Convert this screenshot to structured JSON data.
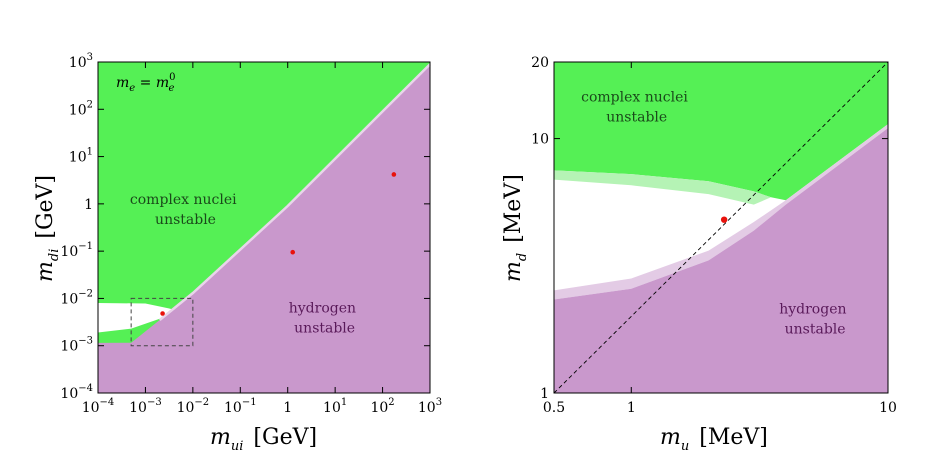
{
  "colors": {
    "green": "#55f055",
    "light_green": "#b5f3b5",
    "purple": "#c998cc",
    "light_purple": "#e3cbe5",
    "white": "#ffffff",
    "point": "#e8120c"
  },
  "chart_data": [
    {
      "type": "region",
      "xlabel_main": "m",
      "xlabel_sub": "ui",
      "xlabel_unit": "[GeV]",
      "ylabel_main": "m",
      "ylabel_sub": "di",
      "ylabel_unit": "[GeV]",
      "xscale": "log",
      "yscale": "log",
      "xlim": [
        0.0001,
        1000
      ],
      "ylim": [
        0.0001,
        1000
      ],
      "xticks": [
        {
          "v": 0.0001,
          "b": "10",
          "e": "−4"
        },
        {
          "v": 0.001,
          "b": "10",
          "e": "−3"
        },
        {
          "v": 0.01,
          "b": "10",
          "e": "−2"
        },
        {
          "v": 0.1,
          "b": "10",
          "e": "−1"
        },
        {
          "v": 1,
          "b": "1",
          "e": ""
        },
        {
          "v": 10,
          "b": "10",
          "e": "1"
        },
        {
          "v": 100,
          "b": "10",
          "e": "2"
        },
        {
          "v": 1000,
          "b": "10",
          "e": "3"
        }
      ],
      "yticks": [
        {
          "v": 0.0001,
          "b": "10",
          "e": "−4"
        },
        {
          "v": 0.001,
          "b": "10",
          "e": "−3"
        },
        {
          "v": 0.01,
          "b": "10",
          "e": "−2"
        },
        {
          "v": 0.1,
          "b": "10",
          "e": "−1"
        },
        {
          "v": 1,
          "b": "1",
          "e": ""
        },
        {
          "v": 10,
          "b": "10",
          "e": "1"
        },
        {
          "v": 100,
          "b": "10",
          "e": "2"
        },
        {
          "v": 1000,
          "b": "10",
          "e": "3"
        }
      ],
      "annotation": {
        "lhs": "m",
        "lhs_sub": "e",
        "eq": " = ",
        "rhs": "m",
        "rhs_sub": "e",
        "rhs_sup": "0"
      },
      "regions": [
        {
          "name": "complex nuclei unstable",
          "color": "green",
          "label_lines": [
            "complex nuclei",
            "unstable"
          ],
          "label_at": [
            0.007,
            1
          ]
        },
        {
          "name": "hydrogen unstable",
          "color": "purple",
          "label_lines": [
            "hydrogen",
            "unstable"
          ],
          "label_at": [
            6,
            0.005
          ]
        }
      ],
      "boundary_line": [
        [
          0.0005,
          0.00115
        ],
        [
          0.002,
          0.0035
        ],
        [
          0.01,
          0.013
        ],
        [
          1,
          0.9
        ],
        [
          1000,
          900
        ]
      ],
      "white_band": {
        "top": [
          [
            0.0001,
            0.008
          ],
          [
            0.001,
            0.0078
          ],
          [
            0.003,
            0.0062
          ],
          [
            0.005,
            0.0055
          ]
        ],
        "bottom": [
          [
            0.0001,
            0.0019
          ],
          [
            0.0005,
            0.0023
          ],
          [
            0.002,
            0.0037
          ],
          [
            0.005,
            0.0055
          ]
        ]
      },
      "points": [
        {
          "x": 0.0023,
          "y": 0.0048
        },
        {
          "x": 1.275,
          "y": 0.095
        },
        {
          "x": 173,
          "y": 4.18
        }
      ],
      "zoom_box": {
        "x": [
          0.0005,
          0.01
        ],
        "y": [
          0.001,
          0.01
        ]
      }
    },
    {
      "type": "region",
      "xlabel_main": "m",
      "xlabel_sub": "u",
      "xlabel_unit": "[MeV]",
      "ylabel_main": "m",
      "ylabel_sub": "d",
      "ylabel_unit": "[MeV]",
      "xscale": "log",
      "yscale": "log",
      "xlim": [
        0.5,
        10
      ],
      "ylim": [
        1,
        20
      ],
      "xticks": [
        {
          "v": 0.5,
          "b": "0.5",
          "e": ""
        },
        {
          "v": 1,
          "b": "1",
          "e": ""
        },
        {
          "v": 10,
          "b": "10",
          "e": ""
        }
      ],
      "yticks": [
        {
          "v": 1,
          "b": "1",
          "e": ""
        },
        {
          "v": 10,
          "b": "10",
          "e": ""
        },
        {
          "v": 20,
          "b": "20",
          "e": ""
        }
      ],
      "regions": [
        {
          "name": "complex nuclei unstable",
          "color": "green",
          "label_lines": [
            "complex nuclei",
            "unstable"
          ],
          "label_at": [
            1.05,
            14
          ]
        },
        {
          "name": "hydrogen unstable",
          "color": "purple",
          "label_lines": [
            "hydrogen",
            "unstable"
          ],
          "label_at": [
            5.2,
            2.05
          ]
        }
      ],
      "green_boundary_upper": [
        [
          0.5,
          7.5
        ],
        [
          1.0,
          7.25
        ],
        [
          2.0,
          6.8
        ],
        [
          3.0,
          6.2
        ],
        [
          3.5,
          5.88
        ]
      ],
      "green_boundary_lower": [
        [
          0.5,
          6.9
        ],
        [
          1.0,
          6.55
        ],
        [
          2.0,
          6.05
        ],
        [
          3.0,
          5.5
        ],
        [
          3.5,
          5.88
        ]
      ],
      "purple_boundary_lower": [
        [
          0.5,
          2.33
        ],
        [
          1.0,
          2.57
        ],
        [
          2.0,
          3.32
        ],
        [
          3.0,
          4.35
        ],
        [
          4.0,
          5.5
        ],
        [
          10,
          11.0
        ]
      ],
      "purple_boundary_upper": [
        [
          0.5,
          2.53
        ],
        [
          1.0,
          2.82
        ],
        [
          2.0,
          3.63
        ],
        [
          3.0,
          4.7
        ],
        [
          4.0,
          5.72
        ],
        [
          10,
          11.4
        ]
      ],
      "diagonal": [
        [
          0.5,
          1.0
        ],
        [
          10,
          20
        ]
      ],
      "points": [
        {
          "x": 2.3,
          "y": 4.8
        }
      ]
    }
  ]
}
